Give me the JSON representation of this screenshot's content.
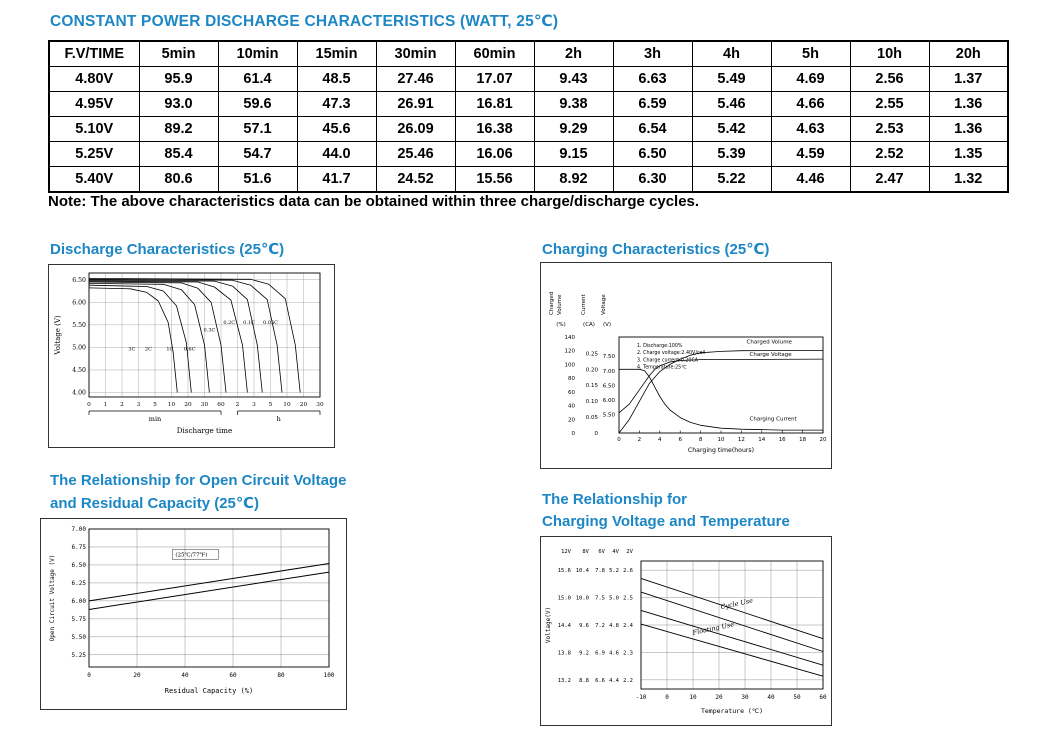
{
  "page": {
    "title": "CONSTANT POWER DISCHARGE CHARACTERISTICS (WATT, 25℃)",
    "note": "Note: The above characteristics data can be obtained within three charge/discharge cycles.",
    "accent_color": "#1c87c4"
  },
  "table": {
    "header": [
      "F.V/TIME",
      "5min",
      "10min",
      "15min",
      "30min",
      "60min",
      "2h",
      "3h",
      "4h",
      "5h",
      "10h",
      "20h"
    ],
    "rows": [
      {
        "label": "4.80V",
        "values": [
          "95.9",
          "61.4",
          "48.5",
          "27.46",
          "17.07",
          "9.43",
          "6.63",
          "5.49",
          "4.69",
          "2.56",
          "1.37"
        ]
      },
      {
        "label": "4.95V",
        "values": [
          "93.0",
          "59.6",
          "47.3",
          "26.91",
          "16.81",
          "9.38",
          "6.59",
          "5.46",
          "4.66",
          "2.55",
          "1.36"
        ]
      },
      {
        "label": "5.10V",
        "values": [
          "89.2",
          "57.1",
          "45.6",
          "26.09",
          "16.38",
          "9.29",
          "6.54",
          "5.42",
          "4.63",
          "2.53",
          "1.36"
        ]
      },
      {
        "label": "5.25V",
        "values": [
          "85.4",
          "54.7",
          "44.0",
          "25.46",
          "16.06",
          "9.15",
          "6.50",
          "5.39",
          "4.59",
          "2.52",
          "1.35"
        ]
      },
      {
        "label": "5.40V",
        "values": [
          "80.6",
          "51.6",
          "41.7",
          "24.52",
          "15.56",
          "8.92",
          "6.30",
          "5.22",
          "4.46",
          "2.47",
          "1.32"
        ]
      }
    ]
  },
  "sections": {
    "discharge": {
      "heading": "Discharge Characteristics (25℃)"
    },
    "charging": {
      "heading": "Charging Characteristics (25℃)"
    },
    "ocv": {
      "heading_line1": "The Relationship for Open Circuit Voltage",
      "heading_line2": "and Residual Capacity (25℃)"
    },
    "temp": {
      "heading_line1": "The Relationship for",
      "heading_line2": "Charging Voltage and Temperature"
    }
  },
  "chart_data": [
    {
      "id": "discharge",
      "type": "line",
      "title": "Discharge Characteristics (25℃)",
      "ylabel": "Voltage (V)",
      "xlabel": "Discharge time",
      "yticks": [
        "6.50",
        "6.00",
        "5.50",
        "5.00",
        "4.50",
        "4.00"
      ],
      "ylim": [
        3.9,
        6.65
      ],
      "xticks": [
        "0",
        "1",
        "2",
        "3",
        "5",
        "10",
        "20",
        "30",
        "60",
        "2",
        "3",
        "5",
        "10",
        "20",
        "30"
      ],
      "x_sections": [
        {
          "label": "min",
          "from": 0,
          "to": 8
        },
        {
          "label": "h",
          "from": 9,
          "to": 14
        }
      ],
      "series": [
        {
          "name": "3C",
          "points": [
            [
              0,
              6.32
            ],
            [
              2.5,
              6.3
            ],
            [
              3.5,
              6.22
            ],
            [
              4.2,
              6.03
            ],
            [
              4.8,
              5.55
            ],
            [
              5.1,
              4.9
            ],
            [
              5.35,
              4.0
            ]
          ]
        },
        {
          "name": "2C",
          "points": [
            [
              0,
              6.38
            ],
            [
              3.5,
              6.35
            ],
            [
              4.5,
              6.25
            ],
            [
              5.3,
              5.92
            ],
            [
              5.9,
              5.1
            ],
            [
              6.2,
              4.0
            ]
          ]
        },
        {
          "name": "1C",
          "points": [
            [
              0,
              6.42
            ],
            [
              4.5,
              6.4
            ],
            [
              5.6,
              6.28
            ],
            [
              6.4,
              5.95
            ],
            [
              7.0,
              5.05
            ],
            [
              7.3,
              4.0
            ]
          ]
        },
        {
          "name": "0.6C",
          "points": [
            [
              0,
              6.45
            ],
            [
              5.6,
              6.43
            ],
            [
              6.6,
              6.31
            ],
            [
              7.4,
              6.0
            ],
            [
              8.0,
              5.05
            ],
            [
              8.3,
              4.0
            ]
          ]
        },
        {
          "name": "0.3C",
          "points": [
            [
              0,
              6.47
            ],
            [
              6.6,
              6.45
            ],
            [
              7.6,
              6.34
            ],
            [
              8.6,
              6.05
            ],
            [
              9.3,
              5.05
            ],
            [
              9.6,
              4.0
            ]
          ]
        },
        {
          "name": "0.2C",
          "points": [
            [
              0,
              6.49
            ],
            [
              7.6,
              6.47
            ],
            [
              8.7,
              6.36
            ],
            [
              9.6,
              6.06
            ],
            [
              10.2,
              5.05
            ],
            [
              10.5,
              4.0
            ]
          ]
        },
        {
          "name": "0.1C",
          "points": [
            [
              0,
              6.51
            ],
            [
              8.7,
              6.49
            ],
            [
              9.8,
              6.38
            ],
            [
              10.8,
              6.06
            ],
            [
              11.4,
              5.05
            ],
            [
              11.7,
              4.0
            ]
          ]
        },
        {
          "name": "0.05C",
          "points": [
            [
              0,
              6.53
            ],
            [
              9.8,
              6.51
            ],
            [
              10.9,
              6.4
            ],
            [
              11.9,
              6.08
            ],
            [
              12.5,
              5.05
            ],
            [
              12.8,
              4.0
            ]
          ]
        }
      ],
      "curve_labels": [
        {
          "text": "3C",
          "x": 2.6,
          "y": 4.93
        },
        {
          "text": "2C",
          "x": 3.6,
          "y": 4.93
        },
        {
          "text": "1C",
          "x": 4.9,
          "y": 4.93
        },
        {
          "text": "0.6C",
          "x": 6.1,
          "y": 4.93
        },
        {
          "text": "0.3C",
          "x": 7.3,
          "y": 5.35
        },
        {
          "text": "0.2C",
          "x": 8.5,
          "y": 5.52
        },
        {
          "text": "0.1C",
          "x": 9.7,
          "y": 5.52
        },
        {
          "text": "0.05C",
          "x": 11.0,
          "y": 5.52
        }
      ]
    },
    {
      "id": "charging",
      "type": "line",
      "title": "Charging Characteristics (25℃)",
      "xlabel": "Charging time(hours)",
      "xticks": [
        0,
        2,
        4,
        6,
        8,
        10,
        12,
        14,
        16,
        18,
        20
      ],
      "xlim": [
        0,
        20
      ],
      "axes": [
        {
          "title": "Charged Volume",
          "unit": "(%)",
          "ticks": [
            [
              "140",
              1
            ],
            [
              "120",
              0.857
            ],
            [
              "100",
              0.714
            ],
            [
              "80",
              0.571
            ],
            [
              "60",
              0.429
            ],
            [
              "40",
              0.286
            ],
            [
              "20",
              0.143
            ],
            [
              "0",
              0
            ]
          ]
        },
        {
          "title": "Current",
          "unit": "(CA)",
          "ticks": [
            [
              "0.25",
              0.83
            ],
            [
              "0.20",
              0.664
            ],
            [
              "0.15",
              0.498
            ],
            [
              "0.10",
              0.332
            ],
            [
              "0.05",
              0.166
            ],
            [
              "0",
              0
            ]
          ]
        },
        {
          "title": "Voltage",
          "unit": "(V)",
          "ticks": [
            [
              "7.50",
              0.8
            ],
            [
              "7.00",
              0.648
            ],
            [
              "6.50",
              0.496
            ],
            [
              "6.00",
              0.344
            ],
            [
              "5.50",
              0.192
            ]
          ]
        }
      ],
      "legend": [
        "1. Discharge:100%",
        "2. Charge voltage:2.40V/cell",
        "3. Charge current:0.20CA",
        "4. Temperature:25℃"
      ],
      "series": [
        {
          "name": "Charged Volume",
          "points": [
            [
              0,
              0
            ],
            [
              1,
              0.14
            ],
            [
              2,
              0.33
            ],
            [
              3,
              0.52
            ],
            [
              4,
              0.64
            ],
            [
              5,
              0.715
            ],
            [
              6,
              0.77
            ],
            [
              7,
              0.81
            ],
            [
              8,
              0.835
            ],
            [
              10,
              0.85
            ],
            [
              12,
              0.857
            ],
            [
              20,
              0.86
            ]
          ]
        },
        {
          "name": "Charge Voltage",
          "points": [
            [
              0,
              0.21
            ],
            [
              1,
              0.3
            ],
            [
              2,
              0.45
            ],
            [
              3,
              0.6
            ],
            [
              3.5,
              0.66
            ],
            [
              4,
              0.7
            ],
            [
              5,
              0.74
            ],
            [
              6,
              0.755
            ],
            [
              8,
              0.765
            ],
            [
              20,
              0.77
            ]
          ]
        },
        {
          "name": "Charging Current",
          "points": [
            [
              0,
              0.664
            ],
            [
              2,
              0.664
            ],
            [
              2.5,
              0.65
            ],
            [
              3,
              0.58
            ],
            [
              3.5,
              0.48
            ],
            [
              4,
              0.38
            ],
            [
              4.5,
              0.3
            ],
            [
              5,
              0.24
            ],
            [
              6,
              0.16
            ],
            [
              7,
              0.11
            ],
            [
              8,
              0.08
            ],
            [
              10,
              0.05
            ],
            [
              12,
              0.04
            ],
            [
              16,
              0.03
            ],
            [
              20,
              0.03
            ]
          ]
        }
      ],
      "curve_labels": [
        {
          "text": "Charged Volume",
          "x": 12.5,
          "y": 0.93
        },
        {
          "text": "Charge Voltage",
          "x": 12.8,
          "y": 0.8
        },
        {
          "text": "Charging Current",
          "x": 12.8,
          "y": 0.13
        }
      ]
    },
    {
      "id": "ocv",
      "type": "line",
      "title": "The Relationship for Open Circuit Voltage and Residual Capacity (25℃)",
      "ylabel": "Open Circuit Voltage (V)",
      "xlabel": "Residual Capacity (%)",
      "yticks": [
        "7.00",
        "6.75",
        "6.50",
        "6.25",
        "6.00",
        "5.75",
        "5.50",
        "5.25"
      ],
      "ylim": [
        5.08,
        7.0
      ],
      "xticks": [
        "0",
        "20",
        "40",
        "60",
        "80",
        "100"
      ],
      "xlim": [
        0,
        100
      ],
      "annotation": "(25℃/77℉)",
      "series": [
        {
          "name": "upper",
          "points": [
            [
              0,
              6.0
            ],
            [
              100,
              6.52
            ]
          ]
        },
        {
          "name": "lower",
          "points": [
            [
              0,
              5.88
            ],
            [
              100,
              6.4
            ]
          ]
        }
      ]
    },
    {
      "id": "temp",
      "type": "line",
      "title": "The Relationship for Charging Voltage and Temperature",
      "ylabel": "Voltage(V)",
      "xlabel": "Temperature (℃)",
      "scale_headers": [
        "12V",
        "8V",
        "6V",
        "4V",
        "2V"
      ],
      "scale_rows": [
        [
          "15.6",
          "10.4",
          "7.8",
          "5.2",
          "2.6"
        ],
        [
          "15.0",
          "10.0",
          "7.5",
          "5.0",
          "2.5"
        ],
        [
          "14.4",
          "9.6",
          "7.2",
          "4.8",
          "2.4"
        ],
        [
          "13.8",
          "9.2",
          "6.9",
          "4.6",
          "2.3"
        ],
        [
          "13.2",
          "8.8",
          "6.6",
          "4.4",
          "2.2"
        ]
      ],
      "gridrows": [
        15.6,
        15.0,
        14.4,
        13.8,
        13.2
      ],
      "ylim": [
        13.0,
        15.8
      ],
      "xticks": [
        "-10",
        "0",
        "10",
        "20",
        "30",
        "40",
        "50",
        "60"
      ],
      "xlim": [
        -10,
        60
      ],
      "series": [
        {
          "name": "cycle-upper",
          "points": [
            [
              -10,
              15.42
            ],
            [
              60,
              14.1
            ]
          ]
        },
        {
          "name": "cycle-lower",
          "points": [
            [
              -10,
              15.12
            ],
            [
              60,
              13.82
            ]
          ]
        },
        {
          "name": "float-upper",
          "points": [
            [
              -10,
              14.72
            ],
            [
              60,
              13.52
            ]
          ]
        },
        {
          "name": "float-lower",
          "points": [
            [
              -10,
              14.42
            ],
            [
              60,
              13.28
            ]
          ]
        }
      ],
      "band_labels": [
        {
          "text": "Cycle Use",
          "x": 27,
          "y": 14.82,
          "angle": -12
        },
        {
          "text": "Floating Use",
          "x": 18,
          "y": 14.28,
          "angle": -12
        }
      ]
    }
  ]
}
